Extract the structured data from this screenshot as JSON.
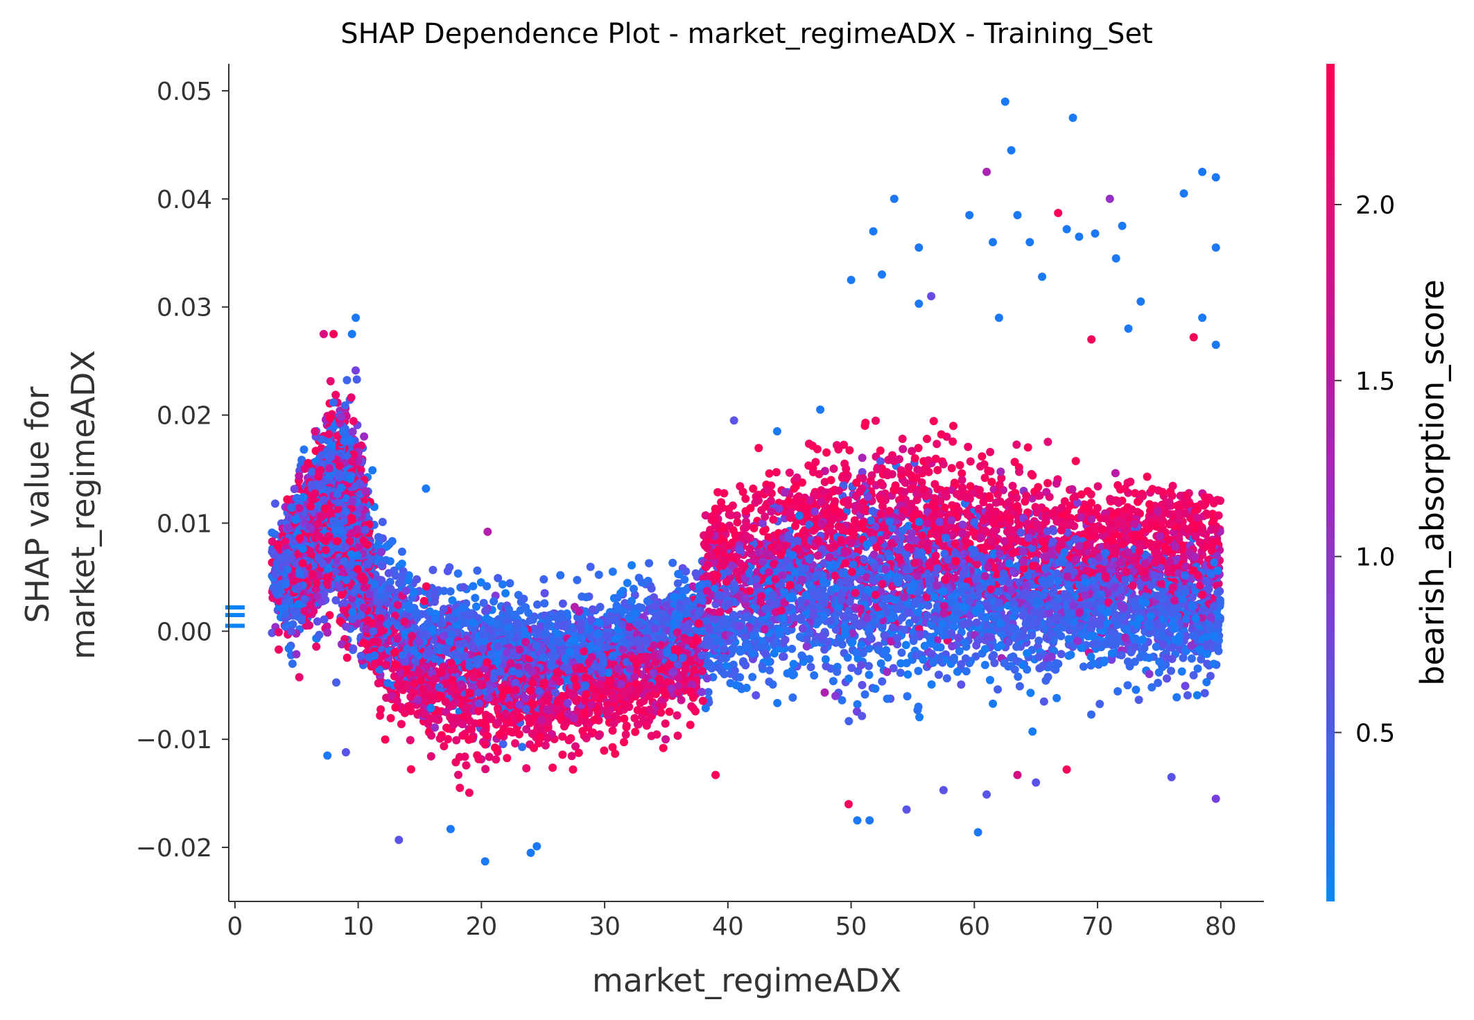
{
  "chart_data": {
    "type": "scatter",
    "title": "SHAP Dependence Plot - market_regimeADX - Training_Set",
    "xlabel": "market_regimeADX",
    "ylabel_lines": [
      "SHAP value for",
      "market_regimeADX"
    ],
    "xlim": [
      -0.5,
      83.5
    ],
    "ylim": [
      -0.025,
      0.0525
    ],
    "x_ticks": [
      0,
      10,
      20,
      30,
      40,
      50,
      60,
      70,
      80
    ],
    "x_tick_labels": [
      "0",
      "10",
      "20",
      "30",
      "40",
      "50",
      "60",
      "70",
      "80"
    ],
    "y_ticks": [
      -0.02,
      -0.01,
      0.0,
      0.01,
      0.02,
      0.03,
      0.04,
      0.05
    ],
    "y_tick_labels": [
      "−0.02",
      "−0.01",
      "0.00",
      "0.01",
      "0.02",
      "0.03",
      "0.04",
      "0.05"
    ],
    "grid": false,
    "colorbar": {
      "label": "bearish_absorption_score",
      "range": [
        0.02,
        2.4
      ],
      "ticks": [
        0.5,
        1.0,
        1.5,
        2.0
      ],
      "tick_labels": [
        "0.5",
        "1.0",
        "1.5",
        "2.0"
      ],
      "colormap": [
        "#008afb",
        "#7a3fe0",
        "#c8129a",
        "#ff0052"
      ]
    },
    "missing_values_marker": {
      "x": 0,
      "y_values": [
        0.0005,
        0.0015,
        0.0022
      ]
    },
    "distribution": {
      "n_points": 11000,
      "x_range": [
        3,
        80
      ],
      "description_curve": [
        {
          "x": 4,
          "center": 0.005,
          "spread": 0.004
        },
        {
          "x": 6,
          "center": 0.008,
          "spread": 0.006
        },
        {
          "x": 8,
          "center": 0.012,
          "spread": 0.007
        },
        {
          "x": 10,
          "center": 0.009,
          "spread": 0.008
        },
        {
          "x": 12,
          "center": 0.001,
          "spread": 0.005
        },
        {
          "x": 16,
          "center": -0.002,
          "spread": 0.005
        },
        {
          "x": 20,
          "center": -0.003,
          "spread": 0.005
        },
        {
          "x": 25,
          "center": -0.003,
          "spread": 0.004
        },
        {
          "x": 30,
          "center": -0.002,
          "spread": 0.004
        },
        {
          "x": 35,
          "center": -0.001,
          "spread": 0.004
        },
        {
          "x": 40,
          "center": 0.002,
          "spread": 0.005
        },
        {
          "x": 45,
          "center": 0.004,
          "spread": 0.006
        },
        {
          "x": 50,
          "center": 0.005,
          "spread": 0.007
        },
        {
          "x": 55,
          "center": 0.005,
          "spread": 0.007
        },
        {
          "x": 60,
          "center": 0.004,
          "spread": 0.006
        },
        {
          "x": 65,
          "center": 0.004,
          "spread": 0.006
        },
        {
          "x": 70,
          "center": 0.003,
          "spread": 0.005
        },
        {
          "x": 75,
          "center": 0.003,
          "spread": 0.005
        },
        {
          "x": 80,
          "center": 0.003,
          "spread": 0.005
        }
      ]
    },
    "outliers": [
      [
        62.5,
        0.049,
        0.2
      ],
      [
        68.0,
        0.0475,
        0.2
      ],
      [
        78.5,
        0.0425,
        0.2
      ],
      [
        79.6,
        0.042,
        0.2
      ],
      [
        61.0,
        0.0425,
        1.3
      ],
      [
        63.0,
        0.0445,
        0.2
      ],
      [
        77.0,
        0.0405,
        0.2
      ],
      [
        71.0,
        0.04,
        1.1
      ],
      [
        53.5,
        0.04,
        0.2
      ],
      [
        66.8,
        0.0387,
        2.3
      ],
      [
        63.5,
        0.0385,
        0.2
      ],
      [
        59.6,
        0.0385,
        0.2
      ],
      [
        67.5,
        0.0372,
        0.2
      ],
      [
        72.0,
        0.0375,
        0.2
      ],
      [
        69.8,
        0.0368,
        0.2
      ],
      [
        68.5,
        0.0365,
        0.2
      ],
      [
        51.8,
        0.037,
        0.2
      ],
      [
        79.6,
        0.0355,
        0.2
      ],
      [
        64.5,
        0.036,
        0.2
      ],
      [
        61.5,
        0.036,
        0.2
      ],
      [
        71.5,
        0.0345,
        0.2
      ],
      [
        55.5,
        0.0355,
        0.2
      ],
      [
        65.5,
        0.0328,
        0.2
      ],
      [
        50.0,
        0.0325,
        0.2
      ],
      [
        52.5,
        0.033,
        0.2
      ],
      [
        73.5,
        0.0305,
        0.2
      ],
      [
        56.5,
        0.031,
        0.7
      ],
      [
        55.5,
        0.0303,
        0.2
      ],
      [
        78.5,
        0.029,
        0.2
      ],
      [
        62.0,
        0.029,
        0.2
      ],
      [
        9.8,
        0.029,
        0.2
      ],
      [
        7.2,
        0.0275,
        1.9
      ],
      [
        8.0,
        0.0275,
        2.3
      ],
      [
        9.5,
        0.0275,
        0.2
      ],
      [
        72.5,
        0.028,
        0.2
      ],
      [
        79.6,
        0.0265,
        0.2
      ],
      [
        69.5,
        0.027,
        2.3
      ],
      [
        77.8,
        0.0272,
        2.3
      ],
      [
        13.3,
        -0.0193,
        0.6
      ],
      [
        24.0,
        -0.0205,
        0.2
      ],
      [
        20.3,
        -0.0213,
        0.2
      ],
      [
        24.5,
        -0.0199,
        0.2
      ],
      [
        17.5,
        -0.0183,
        0.2
      ],
      [
        50.5,
        -0.0175,
        0.2
      ],
      [
        51.5,
        -0.0175,
        0.2
      ],
      [
        60.3,
        -0.0186,
        0.2
      ],
      [
        49.8,
        -0.016,
        2.3
      ],
      [
        54.5,
        -0.0165,
        0.6
      ],
      [
        79.6,
        -0.0155,
        0.8
      ],
      [
        61.0,
        -0.0151,
        0.6
      ],
      [
        57.5,
        -0.0147,
        0.6
      ],
      [
        65.0,
        -0.014,
        0.6
      ],
      [
        76.0,
        -0.0135,
        0.6
      ],
      [
        63.5,
        -0.0133,
        1.8
      ],
      [
        67.5,
        -0.0128,
        2.3
      ],
      [
        39.0,
        -0.0133,
        2.3
      ],
      [
        40.5,
        0.0195,
        0.6
      ],
      [
        44.0,
        0.0185,
        0.2
      ],
      [
        47.5,
        0.0205,
        0.2
      ],
      [
        7.5,
        -0.0115,
        0.2
      ],
      [
        9.0,
        -0.0112,
        0.6
      ],
      [
        3.5,
        0.008,
        2.3
      ],
      [
        15.5,
        0.0132,
        0.2
      ],
      [
        20.5,
        0.0092,
        1.4
      ]
    ]
  }
}
